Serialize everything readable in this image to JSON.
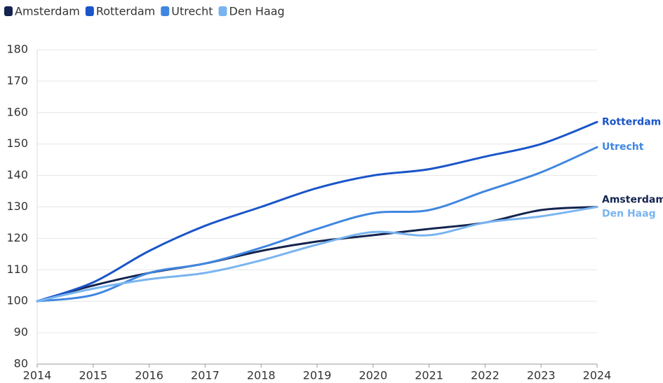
{
  "chart_data": {
    "type": "line",
    "x": [
      2014,
      2015,
      2016,
      2017,
      2018,
      2019,
      2020,
      2021,
      2022,
      2023,
      2024
    ],
    "series": [
      {
        "name": "Amsterdam",
        "color": "#14244f",
        "values": [
          100,
          105,
          109,
          112,
          116,
          119,
          121,
          123,
          125,
          129,
          130
        ]
      },
      {
        "name": "Rotterdam",
        "color": "#1a55c9",
        "values": [
          100,
          106,
          116,
          124,
          130,
          136,
          140,
          142,
          146,
          150,
          157
        ]
      },
      {
        "name": "Utrecht",
        "color": "#3f86e0",
        "values": [
          100,
          102,
          109,
          112,
          117,
          123,
          128,
          129,
          135,
          141,
          149
        ]
      },
      {
        "name": "Den Haag",
        "color": "#79b4f0",
        "values": [
          100,
          104,
          107,
          109,
          113,
          118,
          122,
          121,
          125,
          127,
          130
        ]
      }
    ],
    "xlim": [
      2014,
      2024
    ],
    "xticks": [
      2014,
      2015,
      2016,
      2017,
      2018,
      2019,
      2020,
      2021,
      2022,
      2023,
      2024
    ],
    "ylim": [
      80,
      180
    ],
    "yticks": [
      80,
      90,
      100,
      110,
      120,
      130,
      140,
      150,
      160,
      170,
      180
    ],
    "grid": true,
    "legend": "top-left"
  }
}
